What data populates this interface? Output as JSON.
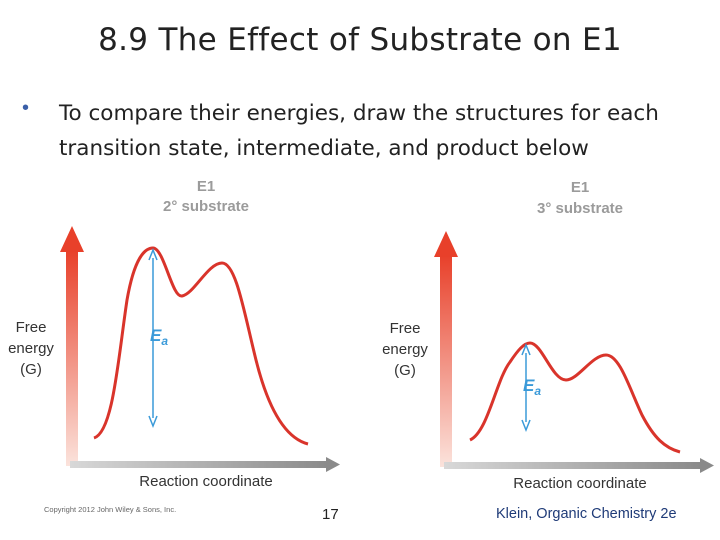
{
  "slide": {
    "title": "8.9 The Effect of Substrate on E1",
    "bullet_symbol": "•",
    "bullet_text": "To compare their energies, draw the structures for each transition state, intermediate, and product below"
  },
  "left_diagram": {
    "heading_line1": "E1",
    "heading_line2": "2° substrate",
    "y_label_line1": "Free",
    "y_label_line2": "energy",
    "y_label_line3": "(G)",
    "ea_label": "E",
    "ea_sub": "a",
    "x_label": "Reaction coordinate"
  },
  "right_diagram": {
    "heading_line1": "E1",
    "heading_line2": "3° substrate",
    "y_label_line1": "Free",
    "y_label_line2": "energy",
    "y_label_line3": "(G)",
    "ea_label": "E",
    "ea_sub": "a",
    "x_label": "Reaction coordinate"
  },
  "footer": {
    "copyright": "Copyright 2012 John Wiley & Sons, Inc.",
    "page_number": "17",
    "credit": "Klein, Organic Chemistry 2e"
  },
  "colors": {
    "curve": "#d9342b",
    "arrow_red": "#e8402a",
    "axis_gray": "#8a8a8a",
    "ea_arrow": "#3a9ad9",
    "heading_gray": "#9b9b9b",
    "credit_blue": "#1f3b78"
  }
}
